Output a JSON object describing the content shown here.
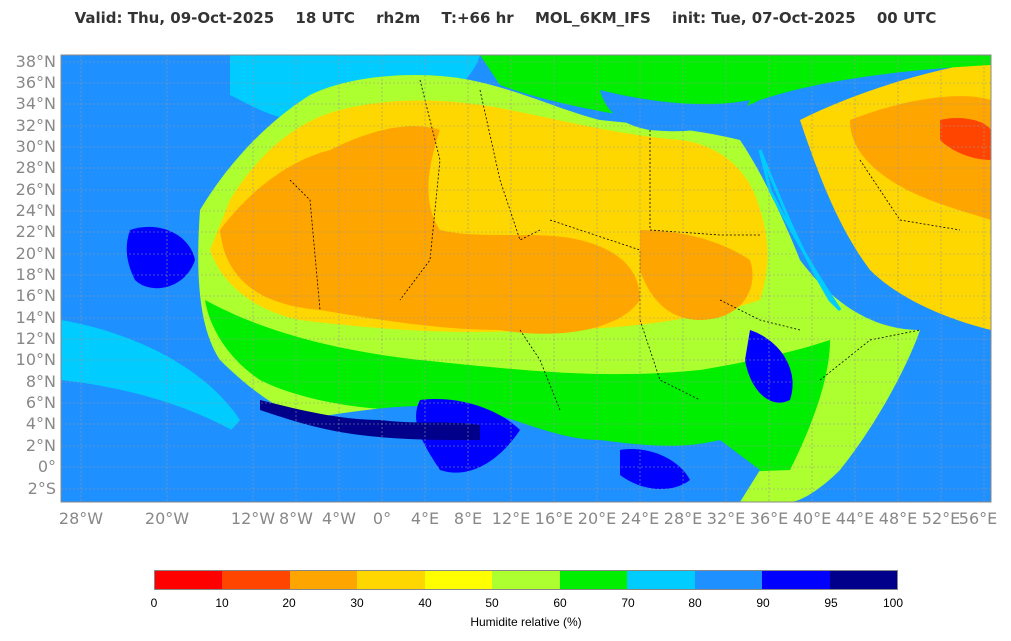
{
  "header": {
    "valid": "Valid: Thu, 09-Oct-2025",
    "valid_time": "18 UTC",
    "variable": "rh2m",
    "lead": "T:+66 hr",
    "model": "MOL_6KM_IFS",
    "init": "init: Tue, 07-Oct-2025",
    "init_time": "00 UTC"
  },
  "axes": {
    "lat_labels": [
      "38°N",
      "36°N",
      "34°N",
      "32°N",
      "30°N",
      "28°N",
      "26°N",
      "24°N",
      "22°N",
      "20°N",
      "18°N",
      "16°N",
      "14°N",
      "12°N",
      "10°N",
      "8°N",
      "6°N",
      "4°N",
      "2°N",
      "0°",
      "2°S"
    ],
    "lon_labels": [
      "28°W",
      "20°W",
      "12°W",
      "8°W",
      "4°W",
      "0°",
      "4°E",
      "8°E",
      "12°E",
      "16°E",
      "20°E",
      "24°E",
      "28°E",
      "32°E",
      "36°E",
      "40°E",
      "44°E",
      "48°E",
      "52°E",
      "56°E"
    ]
  },
  "colorbar": {
    "label": "Humidite relative (%)",
    "ticks": [
      "0",
      "10",
      "20",
      "30",
      "40",
      "50",
      "60",
      "70",
      "80",
      "90",
      "95",
      "100"
    ],
    "colors": [
      "#ff0000",
      "#ff4500",
      "#ffa500",
      "#ffd700",
      "#ffff00",
      "#adff2f",
      "#00ee00",
      "#00ccff",
      "#1e90ff",
      "#0000ff",
      "#00008b"
    ]
  }
}
